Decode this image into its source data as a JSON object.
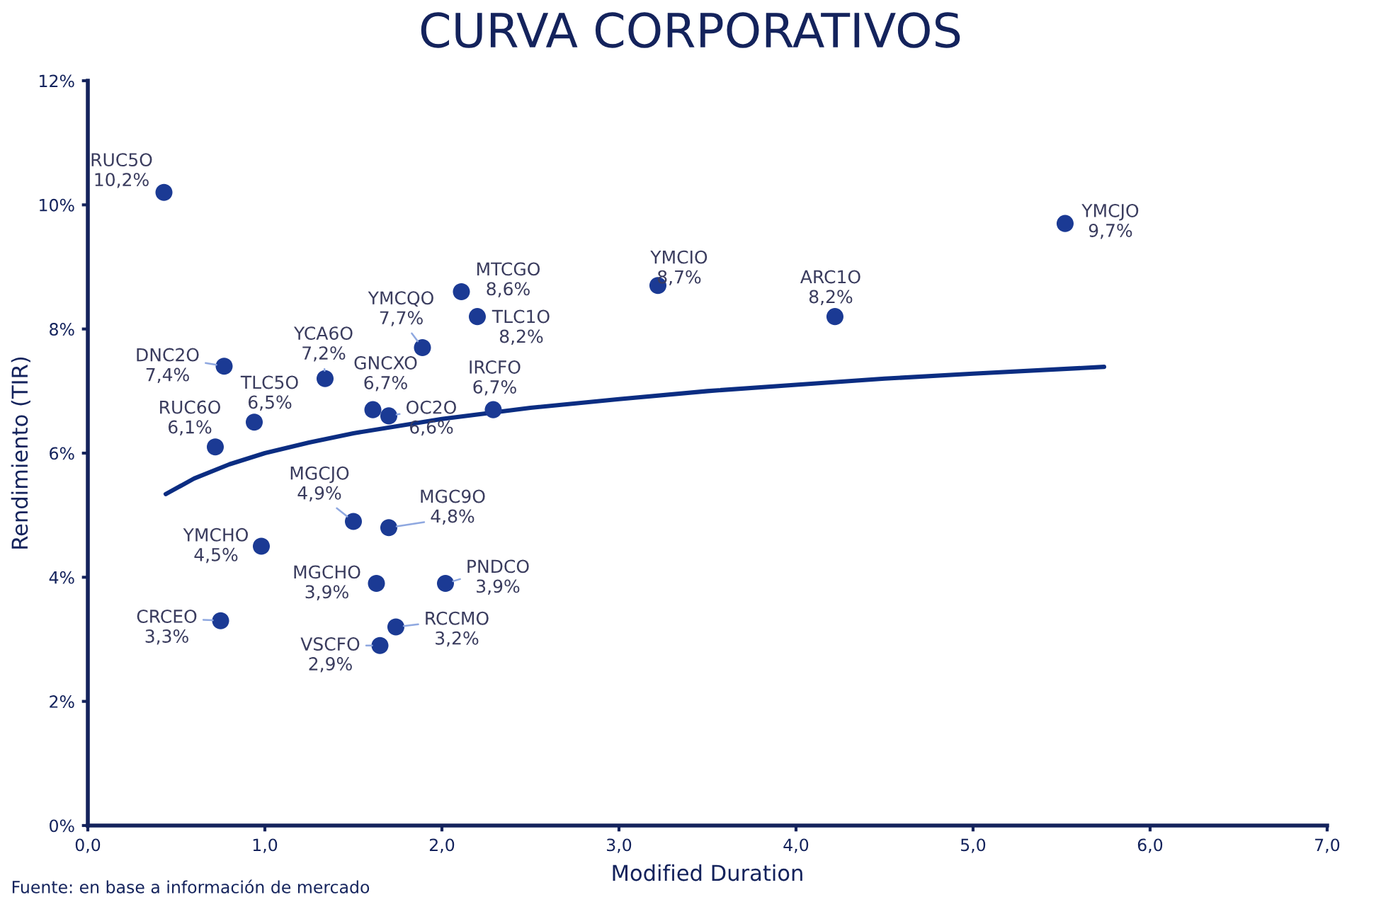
{
  "chart_data": {
    "type": "scatter",
    "title": "CURVA CORPORATIVOS",
    "xlabel": "Modified Duration",
    "ylabel": "Rendimiento (TIR)",
    "xlim": [
      0,
      7
    ],
    "xticks": [
      {
        "value": 0,
        "label": "0,0"
      },
      {
        "value": 1,
        "label": "1,0"
      },
      {
        "value": 2,
        "label": "2,0"
      },
      {
        "value": 3,
        "label": "3,0"
      },
      {
        "value": 4,
        "label": "4,0"
      },
      {
        "value": 5,
        "label": "5,0"
      },
      {
        "value": 6,
        "label": "6,0"
      },
      {
        "value": 7,
        "label": "7,0"
      }
    ],
    "ylim": [
      0,
      12
    ],
    "yticks": [
      {
        "value": 0,
        "label": "0%"
      },
      {
        "value": 2,
        "label": "2%"
      },
      {
        "value": 4,
        "label": "4%"
      },
      {
        "value": 6,
        "label": "6%"
      },
      {
        "value": 8,
        "label": "8%"
      },
      {
        "value": 10,
        "label": "10%"
      },
      {
        "value": 12,
        "label": "12%"
      }
    ],
    "series": [
      {
        "color": "#1b3a94",
        "marker": "circle",
        "x": [
          0.43,
          5.52,
          3.22,
          2.11,
          4.22,
          2.2,
          1.89,
          0.77,
          1.34,
          1.61,
          2.29,
          1.7,
          0.94,
          0.72,
          1.5,
          1.7,
          0.98,
          1.63,
          2.02,
          0.75,
          1.74,
          1.65
        ],
        "values": [
          10.2,
          9.7,
          8.7,
          8.6,
          8.2,
          8.2,
          7.7,
          7.4,
          7.2,
          6.7,
          6.7,
          6.6,
          6.5,
          6.1,
          4.9,
          4.8,
          4.5,
          3.9,
          3.9,
          3.3,
          3.2,
          2.9
        ],
        "value_labels": [
          "10,2%",
          "9,7%",
          "8,7%",
          "8,6%",
          "8,2%",
          "8,2%",
          "7,7%",
          "7,4%",
          "7,2%",
          "6,7%",
          "6,7%",
          "6,6%",
          "6,5%",
          "6,1%",
          "4,9%",
          "4,8%",
          "4,5%",
          "3,9%",
          "3,9%",
          "3,3%",
          "3,2%",
          "2,9%"
        ]
      },
      {
        "type": "line",
        "color": "#0b2d82",
        "line_style": "solid",
        "x": [
          0.44,
          0.6,
          0.8,
          1.0,
          1.25,
          1.5,
          2.0,
          2.5,
          3.0,
          3.5,
          4.0,
          4.5,
          5.0,
          5.74
        ],
        "values": [
          5.34,
          5.59,
          5.82,
          6.0,
          6.17,
          6.32,
          6.55,
          6.73,
          6.87,
          7.0,
          7.1,
          7.2,
          7.28,
          7.39
        ]
      }
    ],
    "annotations": [
      {
        "text": "RUC5O",
        "x": 0.43,
        "y": 10.2
      },
      {
        "text": "YMCJO",
        "x": 5.52,
        "y": 9.7
      },
      {
        "text": "YMCIO",
        "x": 3.22,
        "y": 8.7
      },
      {
        "text": "MTCGO",
        "x": 2.11,
        "y": 8.6
      },
      {
        "text": "ARC1O",
        "x": 4.22,
        "y": 8.2
      },
      {
        "text": "TLC1O",
        "x": 2.2,
        "y": 8.2
      },
      {
        "text": "YMCQO",
        "x": 1.89,
        "y": 7.7
      },
      {
        "text": "DNC2O",
        "x": 0.77,
        "y": 7.4
      },
      {
        "text": "YCA6O",
        "x": 1.34,
        "y": 7.2
      },
      {
        "text": "GNCXO",
        "x": 1.61,
        "y": 6.7
      },
      {
        "text": "IRCFO",
        "x": 2.29,
        "y": 6.7
      },
      {
        "text": "OC2O",
        "x": 1.7,
        "y": 6.6
      },
      {
        "text": "TLC5O",
        "x": 0.94,
        "y": 6.5
      },
      {
        "text": "RUC6O",
        "x": 0.72,
        "y": 6.1
      },
      {
        "text": "MGCJO",
        "x": 1.5,
        "y": 4.9
      },
      {
        "text": "MGC9O",
        "x": 1.7,
        "y": 4.8
      },
      {
        "text": "YMCHO",
        "x": 0.98,
        "y": 4.5
      },
      {
        "text": "MGCHO",
        "x": 1.63,
        "y": 3.9
      },
      {
        "text": "PNDCO",
        "x": 2.02,
        "y": 3.9
      },
      {
        "text": "CRCEO",
        "x": 0.75,
        "y": 3.3
      },
      {
        "text": "RCCMO",
        "x": 1.74,
        "y": 3.2
      },
      {
        "text": "VSCFO",
        "x": 1.65,
        "y": 2.9
      },
      "Fuente: en base a información de mercado"
    ]
  }
}
